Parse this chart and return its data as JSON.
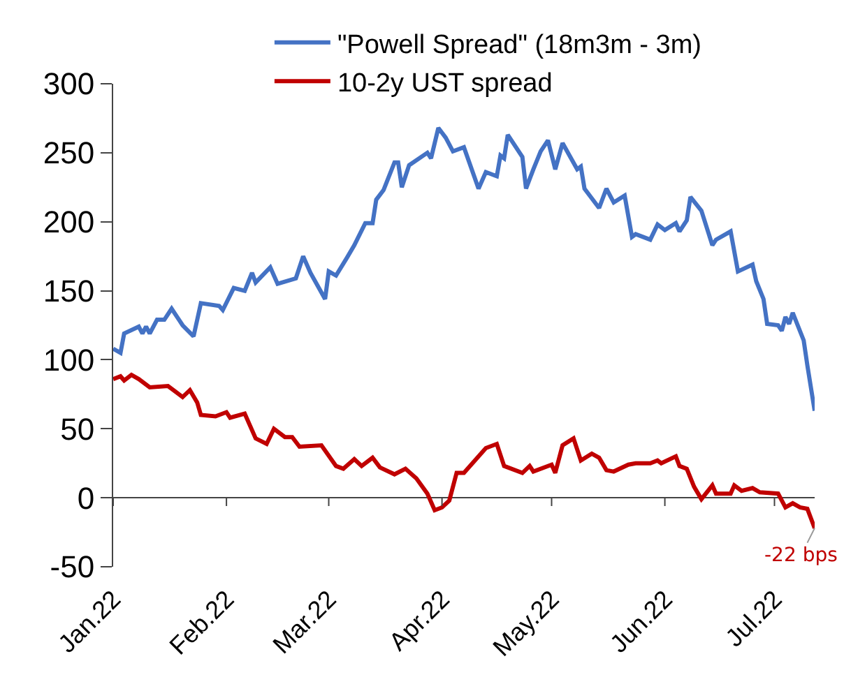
{
  "chart_data": {
    "type": "line",
    "xlim": [
      "2022-01-01",
      "2022-07-12"
    ],
    "xticks": [
      {
        "value": "2022-01-01",
        "label": "Jan.22"
      },
      {
        "value": "2022-02-01",
        "label": "Feb.22"
      },
      {
        "value": "2022-03-01",
        "label": "Mar.22"
      },
      {
        "value": "2022-04-01",
        "label": "Apr.22"
      },
      {
        "value": "2022-05-01",
        "label": "May.22"
      },
      {
        "value": "2022-06-01",
        "label": "Jun.22"
      },
      {
        "value": "2022-07-01",
        "label": "Jul.22"
      }
    ],
    "ylim": [
      -50,
      300
    ],
    "yticks": [
      -50,
      0,
      50,
      100,
      150,
      200,
      250,
      300
    ],
    "legend": "top",
    "series": [
      {
        "name": "\"Powell Spread\" (18m3m - 3m)",
        "color": "#4472c4",
        "x": [
          "2022-01-01",
          "2022-01-03",
          "2022-01-04",
          "2022-01-08",
          "2022-01-09",
          "2022-01-10",
          "2022-01-11",
          "2022-01-13",
          "2022-01-15",
          "2022-01-17",
          "2022-01-20",
          "2022-01-23",
          "2022-01-25",
          "2022-01-30",
          "2022-01-31",
          "2022-02-03",
          "2022-02-06",
          "2022-02-08",
          "2022-02-09",
          "2022-02-13",
          "2022-02-15",
          "2022-02-20",
          "2022-02-22",
          "2022-02-24",
          "2022-02-28",
          "2022-03-01",
          "2022-03-03",
          "2022-03-06",
          "2022-03-08",
          "2022-03-11",
          "2022-03-13",
          "2022-03-14",
          "2022-03-16",
          "2022-03-19",
          "2022-03-20",
          "2022-03-21",
          "2022-03-23",
          "2022-03-28",
          "2022-03-29",
          "2022-03-31",
          "2022-04-02",
          "2022-04-04",
          "2022-04-07",
          "2022-04-11",
          "2022-04-13",
          "2022-04-16",
          "2022-04-17",
          "2022-04-18",
          "2022-04-19",
          "2022-04-23",
          "2022-04-24",
          "2022-04-26",
          "2022-04-28",
          "2022-04-30",
          "2022-05-02",
          "2022-05-04",
          "2022-05-08",
          "2022-05-09",
          "2022-05-10",
          "2022-05-14",
          "2022-05-16",
          "2022-05-18",
          "2022-05-21",
          "2022-05-23",
          "2022-05-24",
          "2022-05-28",
          "2022-05-30",
          "2022-06-01",
          "2022-06-04",
          "2022-06-05",
          "2022-06-07",
          "2022-06-08",
          "2022-06-11",
          "2022-06-14",
          "2022-06-15",
          "2022-06-19",
          "2022-06-21",
          "2022-06-25",
          "2022-06-26",
          "2022-06-28",
          "2022-06-29",
          "2022-07-02",
          "2022-07-03",
          "2022-07-04",
          "2022-07-05",
          "2022-07-06",
          "2022-07-09",
          "2022-07-10",
          "2022-07-12"
        ],
        "values": [
          108,
          105,
          119,
          124,
          119,
          124,
          119,
          129,
          129,
          137,
          125,
          117,
          141,
          139,
          136,
          152,
          150,
          163,
          156,
          167,
          155,
          159,
          175,
          163,
          144,
          164,
          161,
          174,
          183,
          199,
          199,
          216,
          223,
          243,
          243,
          225,
          241,
          250,
          246,
          268,
          261,
          251,
          254,
          224,
          236,
          233,
          248,
          246,
          263,
          247,
          224,
          238,
          251,
          259,
          238,
          257,
          238,
          240,
          224,
          210,
          224,
          214,
          219,
          189,
          191,
          187,
          198,
          194,
          199,
          193,
          201,
          218,
          208,
          183,
          187,
          193,
          164,
          169,
          157,
          144,
          126,
          125,
          121,
          131,
          126,
          134,
          114,
          96,
          63
        ]
      },
      {
        "name": "10-2y UST spread",
        "color": "#c00000",
        "x": [
          "2022-01-01",
          "2022-01-03",
          "2022-01-04",
          "2022-01-06",
          "2022-01-08",
          "2022-01-11",
          "2022-01-16",
          "2022-01-20",
          "2022-01-22",
          "2022-01-24",
          "2022-01-25",
          "2022-01-29",
          "2022-02-01",
          "2022-02-02",
          "2022-02-06",
          "2022-02-09",
          "2022-02-12",
          "2022-02-14",
          "2022-02-17",
          "2022-02-19",
          "2022-02-21",
          "2022-02-27",
          "2022-03-03",
          "2022-03-05",
          "2022-03-08",
          "2022-03-10",
          "2022-03-13",
          "2022-03-15",
          "2022-03-19",
          "2022-03-22",
          "2022-03-25",
          "2022-03-28",
          "2022-03-30",
          "2022-04-01",
          "2022-04-03",
          "2022-04-05",
          "2022-04-07",
          "2022-04-13",
          "2022-04-16",
          "2022-04-18",
          "2022-04-23",
          "2022-04-25",
          "2022-04-26",
          "2022-05-01",
          "2022-05-02",
          "2022-05-04",
          "2022-05-07",
          "2022-05-09",
          "2022-05-12",
          "2022-05-14",
          "2022-05-16",
          "2022-05-18",
          "2022-05-22",
          "2022-05-24",
          "2022-05-28",
          "2022-05-30",
          "2022-05-31",
          "2022-06-04",
          "2022-06-05",
          "2022-06-07",
          "2022-06-09",
          "2022-06-11",
          "2022-06-14",
          "2022-06-15",
          "2022-06-19",
          "2022-06-20",
          "2022-06-22",
          "2022-06-25",
          "2022-06-27",
          "2022-07-02",
          "2022-07-04",
          "2022-07-06",
          "2022-07-08",
          "2022-07-10",
          "2022-07-12"
        ],
        "values": [
          86,
          88,
          85,
          89,
          86,
          80,
          81,
          73,
          78,
          69,
          60,
          59,
          62,
          58,
          61,
          43,
          39,
          50,
          44,
          44,
          37,
          38,
          23,
          21,
          28,
          23,
          29,
          22,
          17,
          21,
          14,
          3,
          -9,
          -7,
          -2,
          18,
          18,
          36,
          39,
          23,
          18,
          23,
          19,
          24,
          18,
          38,
          43,
          27,
          32,
          29,
          20,
          19,
          24,
          25,
          25,
          27,
          25,
          30,
          23,
          21,
          8,
          -1,
          9,
          3,
          3,
          9,
          5,
          7,
          4,
          3,
          -7,
          -4,
          -7,
          -8,
          -22
        ]
      }
    ],
    "annotations": [
      {
        "text": "-22 bps",
        "x": "2022-07-12",
        "y": -22
      }
    ]
  }
}
